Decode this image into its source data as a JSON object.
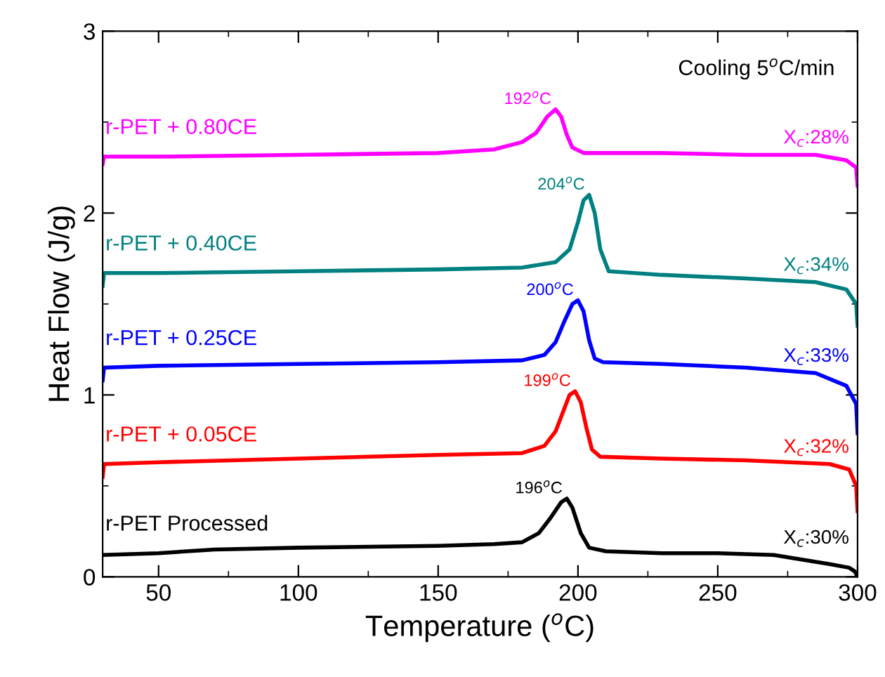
{
  "chart_data": {
    "type": "line",
    "xlabel": "Temperature ($^{o}$C)",
    "ylabel": "Heat Flow (J/g)",
    "xlim": [
      30,
      300
    ],
    "ylim": [
      0,
      3
    ],
    "xticks": [
      50,
      100,
      150,
      200,
      250,
      300
    ],
    "yticks": [
      0,
      1,
      2,
      3
    ],
    "grid": false,
    "legend": false,
    "marker": "none",
    "line_style": "solid",
    "series": [
      {
        "name": "r-PET Processed",
        "color": "#000000",
        "x": [
          30,
          50,
          70,
          100,
          150,
          170,
          180,
          186,
          190,
          194,
          196,
          198,
          201,
          204,
          210,
          230,
          250,
          270,
          290,
          297,
          299,
          300
        ],
        "values": [
          0.12,
          0.13,
          0.15,
          0.16,
          0.17,
          0.18,
          0.19,
          0.24,
          0.32,
          0.41,
          0.43,
          0.38,
          0.24,
          0.16,
          0.14,
          0.13,
          0.13,
          0.12,
          0.07,
          0.05,
          0.03,
          0.0
        ]
      },
      {
        "name": "r-PET + 0.05CE",
        "color": "#ff0000",
        "x": [
          30,
          30.5,
          50,
          100,
          150,
          180,
          188,
          192,
          195,
          197,
          199,
          201,
          203,
          205,
          208,
          230,
          260,
          290,
          297,
          299.5,
          300
        ],
        "values": [
          0.55,
          0.62,
          0.63,
          0.65,
          0.67,
          0.68,
          0.72,
          0.8,
          0.92,
          1.0,
          1.02,
          0.96,
          0.82,
          0.7,
          0.66,
          0.65,
          0.64,
          0.62,
          0.59,
          0.5,
          0.36
        ]
      },
      {
        "name": "r-PET + 0.25CE",
        "color": "#0000ff",
        "x": [
          30,
          30.5,
          50,
          100,
          150,
          180,
          188,
          192,
          195,
          198,
          200,
          202,
          204,
          206,
          209,
          230,
          260,
          285,
          296,
          299.5,
          300
        ],
        "values": [
          1.08,
          1.15,
          1.16,
          1.17,
          1.18,
          1.19,
          1.22,
          1.29,
          1.4,
          1.5,
          1.52,
          1.46,
          1.3,
          1.2,
          1.18,
          1.17,
          1.15,
          1.12,
          1.05,
          0.95,
          0.79
        ]
      },
      {
        "name": "r-PET + 0.40CE",
        "color": "#008080",
        "x": [
          30,
          30.5,
          50,
          100,
          150,
          180,
          192,
          197,
          200,
          202,
          204,
          206,
          208,
          211,
          230,
          260,
          285,
          296,
          299.5,
          300
        ],
        "values": [
          1.6,
          1.67,
          1.67,
          1.68,
          1.69,
          1.7,
          1.73,
          1.8,
          1.95,
          2.07,
          2.1,
          2.0,
          1.8,
          1.68,
          1.66,
          1.64,
          1.62,
          1.58,
          1.5,
          1.38
        ]
      },
      {
        "name": "r-PET + 0.80CE",
        "color": "#ff00ff",
        "x": [
          30,
          30.5,
          50,
          100,
          150,
          170,
          180,
          185,
          189,
          192,
          194,
          196,
          198,
          202,
          230,
          260,
          285,
          296,
          299.5,
          300
        ],
        "values": [
          2.27,
          2.31,
          2.31,
          2.32,
          2.33,
          2.35,
          2.39,
          2.44,
          2.53,
          2.57,
          2.53,
          2.43,
          2.36,
          2.33,
          2.33,
          2.32,
          2.32,
          2.29,
          2.25,
          2.15
        ]
      }
    ],
    "annotations": [
      {
        "text": "196$^{o}$C",
        "x": 196,
        "y": 0.43
      },
      {
        "text": "199$^{o}$C",
        "x": 199,
        "y": 1.02
      },
      {
        "text": "200$^{o}$C",
        "x": 200,
        "y": 1.52
      },
      {
        "text": "204$^{o}$C",
        "x": 204,
        "y": 2.1
      },
      {
        "text": "192$^{o}$C",
        "x": 192,
        "y": 2.57
      },
      {
        "text": "X$_{c}$:30%",
        "x": 285,
        "y": 0.12
      },
      {
        "text": "X$_{c}$:32%",
        "x": 285,
        "y": 0.62
      },
      {
        "text": "X$_{c}$:33%",
        "x": 285,
        "y": 1.12
      },
      {
        "text": "X$_{c}$:34%",
        "x": 285,
        "y": 1.62
      },
      {
        "text": "X$_{c}$:28%",
        "x": 285,
        "y": 2.32
      },
      "Cooling 5$^{o}$C/min"
    ]
  }
}
